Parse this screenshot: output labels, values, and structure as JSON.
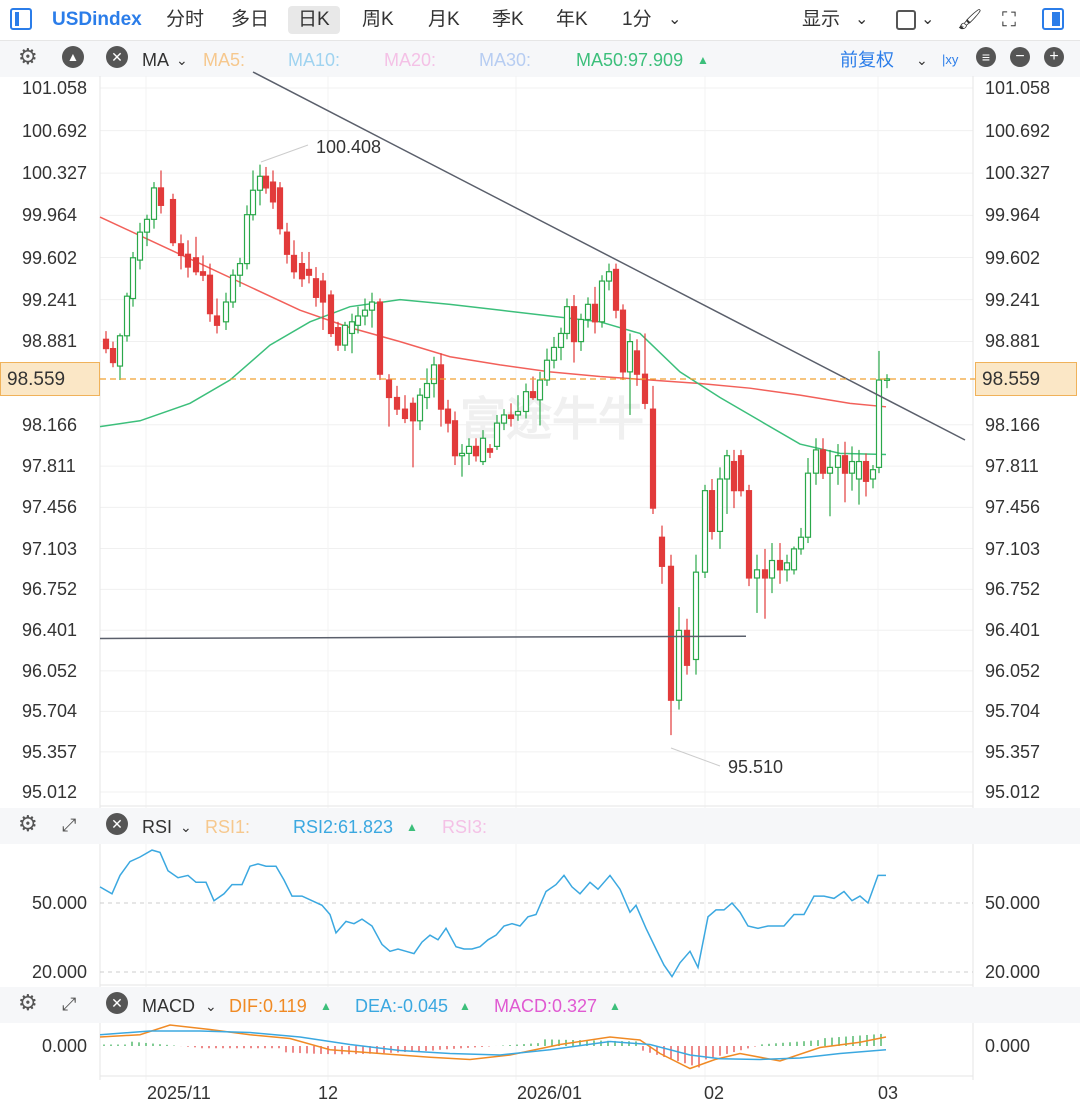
{
  "toolbar": {
    "symbol": "USDindex",
    "periods": [
      "分时",
      "多日",
      "日K",
      "周K",
      "月K",
      "季K",
      "年K",
      "1分"
    ],
    "active_period": "日K",
    "display_label": "显示"
  },
  "ma_bar": {
    "name": "MA",
    "ma5": "MA5:",
    "ma10": "MA10:",
    "ma20": "MA20:",
    "ma30": "MA30:",
    "ma50": "MA50:97.909",
    "adjust": "前复权",
    "colors": {
      "ma5": "#f6c88e",
      "ma10": "#9fd3f0",
      "ma20": "#f4c1e6",
      "ma30": "#b7cdf2",
      "ma50": "#3cbf7b",
      "red_line": "#f2605a"
    }
  },
  "price_axis": {
    "labels": [
      "101.058",
      "100.692",
      "100.327",
      "99.964",
      "99.602",
      "99.241",
      "98.881",
      "98.166",
      "97.811",
      "97.456",
      "97.103",
      "96.752",
      "96.401",
      "96.052",
      "95.704",
      "95.357",
      "95.012"
    ],
    "current_price": "98.559",
    "annotation_high": "100.408",
    "annotation_low": "95.510",
    "watermark": "富途牛牛"
  },
  "rsi_bar": {
    "name": "RSI",
    "rsi1": "RSI1:",
    "rsi2": "RSI2:61.823",
    "rsi3": "RSI3:",
    "labels": [
      "50.000",
      "20.000"
    ]
  },
  "macd_bar": {
    "name": "MACD",
    "dif": "DIF:0.119",
    "dea": "DEA:-0.045",
    "macd": "MACD:0.327",
    "labels": [
      "0.000"
    ]
  },
  "x_axis": {
    "labels": [
      "2025/11",
      "12",
      "2026/01",
      "02",
      "03"
    ]
  },
  "colors": {
    "up": "#2aa84a",
    "down": "#e23b3b",
    "accent": "#2b7de9",
    "rsi_line": "#3ba8e0",
    "dif_line": "#f08a24",
    "dea_line": "#3ba8e0"
  }
}
